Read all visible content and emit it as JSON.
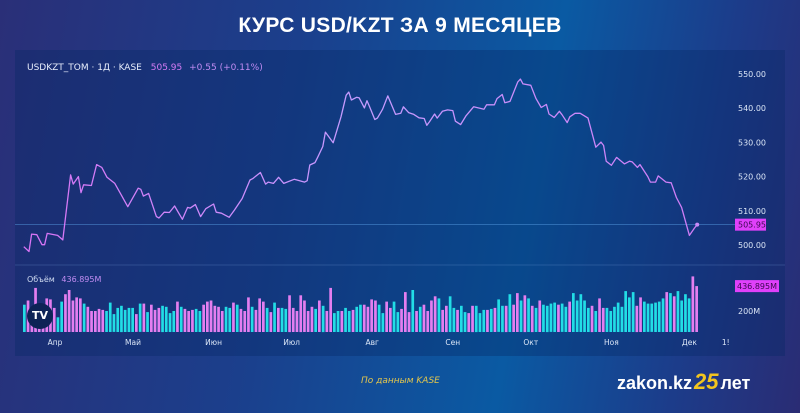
{
  "title": "КУРС USD/KZT ЗА 9 МЕСЯЦЕВ",
  "legend": {
    "symbol": "USDKZT_TOM · 1Д · KASE",
    "last": "505.95",
    "change": "+0.55 (+0.11%)"
  },
  "volume_legend": {
    "label": "Объём",
    "value": "436.895M"
  },
  "footer": {
    "source": "По данным KASE",
    "logo_text": "zakon.kz",
    "logo_number": "25",
    "logo_suffix": "лет"
  },
  "colors": {
    "line": "#c98af8",
    "volume_up": "#22dde6",
    "volume_down": "#e47ef0",
    "price_tag": "#e040fb"
  },
  "icons": {
    "tradingview_logo": "tradingview-logo-icon"
  },
  "chart_data": [
    {
      "type": "line",
      "ylim": [
        495,
        552
      ],
      "y_ticks": [
        "550.00",
        "540.00",
        "530.00",
        "520.00",
        "510.00",
        "500.00"
      ],
      "x_ticks": [
        "Апр",
        "Май",
        "Июн",
        "Июл",
        "Авг",
        "Сен",
        "Окт",
        "Ноя",
        "Дек",
        "1!"
      ],
      "last_price_label": "505.95",
      "grid": false,
      "points": [
        [
          "2025-03-20",
          499.5
        ],
        [
          "2025-03-22",
          498.1
        ],
        [
          "2025-03-23",
          503.2
        ],
        [
          "2025-03-25",
          503.0
        ],
        [
          "2025-03-27",
          500.1
        ],
        [
          "2025-03-28",
          500.1
        ],
        [
          "2025-03-29",
          503.4
        ],
        [
          "2025-04-02",
          502.8
        ],
        [
          "2025-04-04",
          501.5
        ],
        [
          "2025-04-07",
          520.5
        ],
        [
          "2025-04-08",
          517.8
        ],
        [
          "2025-04-10",
          520.0
        ],
        [
          "2025-04-11",
          515.3
        ],
        [
          "2025-04-12",
          517.6
        ],
        [
          "2025-04-15",
          517.4
        ],
        [
          "2025-04-17",
          523.5
        ],
        [
          "2025-04-19",
          522.7
        ],
        [
          "2025-04-21",
          519.8
        ],
        [
          "2025-04-24",
          518.0
        ],
        [
          "2025-04-26",
          515.3
        ],
        [
          "2025-04-29",
          511.2
        ],
        [
          "2025-05-03",
          516.6
        ],
        [
          "2025-05-04",
          516.3
        ],
        [
          "2025-05-05",
          514.3
        ],
        [
          "2025-05-07",
          515.1
        ],
        [
          "2025-05-10",
          508.3
        ],
        [
          "2025-05-11",
          507.9
        ],
        [
          "2025-05-13",
          509.6
        ],
        [
          "2025-05-15",
          509.5
        ],
        [
          "2025-05-17",
          511.4
        ],
        [
          "2025-05-19",
          508.8
        ],
        [
          "2025-05-20",
          507.5
        ],
        [
          "2025-05-22",
          511.0
        ],
        [
          "2025-05-23",
          510.8
        ],
        [
          "2025-05-25",
          511.8
        ],
        [
          "2025-05-27",
          508.3
        ],
        [
          "2025-05-29",
          510.6
        ],
        [
          "2025-06-01",
          512.0
        ],
        [
          "2025-06-02",
          509.6
        ],
        [
          "2025-06-04",
          509.3
        ],
        [
          "2025-06-07",
          508.1
        ],
        [
          "2025-06-09",
          510.2
        ],
        [
          "2025-06-12",
          513.6
        ],
        [
          "2025-06-15",
          519.0
        ],
        [
          "2025-06-16",
          519.4
        ],
        [
          "2025-06-19",
          521.2
        ],
        [
          "2025-06-21",
          517.8
        ],
        [
          "2025-06-22",
          518.4
        ],
        [
          "2025-06-24",
          518.0
        ],
        [
          "2025-06-26",
          519.8
        ],
        [
          "2025-06-28",
          518.0
        ],
        [
          "2025-07-02",
          519.2
        ],
        [
          "2025-07-06",
          518.4
        ],
        [
          "2025-07-07",
          518.8
        ],
        [
          "2025-07-08",
          523.4
        ],
        [
          "2025-07-10",
          524.1
        ],
        [
          "2025-07-11",
          525.6
        ],
        [
          "2025-07-13",
          528.8
        ],
        [
          "2025-07-14",
          533.0
        ],
        [
          "2025-07-17",
          529.9
        ],
        [
          "2025-07-20",
          537.5
        ],
        [
          "2025-07-22",
          543.8
        ],
        [
          "2025-07-23",
          544.7
        ],
        [
          "2025-07-24",
          542.4
        ],
        [
          "2025-07-26",
          543.2
        ],
        [
          "2025-07-27",
          543.0
        ],
        [
          "2025-07-29",
          540.1
        ],
        [
          "2025-07-30",
          542.2
        ],
        [
          "2025-07-31",
          540.4
        ],
        [
          "2025-08-02",
          536.7
        ],
        [
          "2025-08-03",
          537.1
        ],
        [
          "2025-08-05",
          539.7
        ],
        [
          "2025-08-07",
          543.6
        ],
        [
          "2025-08-10",
          538.2
        ],
        [
          "2025-08-12",
          538.5
        ],
        [
          "2025-08-13",
          540.4
        ],
        [
          "2025-08-15",
          538.7
        ],
        [
          "2025-08-17",
          538.2
        ],
        [
          "2025-08-19",
          537.2
        ],
        [
          "2025-08-21",
          537.0
        ],
        [
          "2025-08-22",
          535.0
        ],
        [
          "2025-08-23",
          536.0
        ],
        [
          "2025-08-25",
          538.3
        ],
        [
          "2025-08-26",
          537.1
        ],
        [
          "2025-08-28",
          539.1
        ],
        [
          "2025-08-30",
          539.5
        ],
        [
          "2025-09-01",
          539.3
        ],
        [
          "2025-09-02",
          536.2
        ],
        [
          "2025-09-04",
          535.2
        ],
        [
          "2025-09-06",
          537.7
        ],
        [
          "2025-09-09",
          540.4
        ],
        [
          "2025-09-13",
          539.7
        ],
        [
          "2025-09-14",
          541.0
        ],
        [
          "2025-09-17",
          541.0
        ],
        [
          "2025-09-18",
          542.8
        ],
        [
          "2025-09-20",
          544.0
        ],
        [
          "2025-09-21",
          541.6
        ],
        [
          "2025-09-23",
          542.0
        ],
        [
          "2025-09-26",
          547.7
        ],
        [
          "2025-09-27",
          548.5
        ],
        [
          "2025-09-28",
          547.1
        ],
        [
          "2025-10-01",
          546.7
        ],
        [
          "2025-10-03",
          542.8
        ],
        [
          "2025-10-05",
          540.2
        ],
        [
          "2025-10-07",
          541.1
        ],
        [
          "2025-10-08",
          538.3
        ],
        [
          "2025-10-10",
          537.3
        ],
        [
          "2025-10-12",
          539.1
        ],
        [
          "2025-10-13",
          538.1
        ],
        [
          "2025-10-15",
          535.8
        ],
        [
          "2025-10-16",
          537.5
        ],
        [
          "2025-10-18",
          538.5
        ],
        [
          "2025-10-20",
          538.5
        ],
        [
          "2025-10-23",
          537.1
        ],
        [
          "2025-10-26",
          528.6
        ],
        [
          "2025-10-28",
          530.1
        ],
        [
          "2025-10-29",
          529.1
        ],
        [
          "2025-10-30",
          524.5
        ],
        [
          "2025-11-01",
          523.3
        ],
        [
          "2025-11-03",
          525.6
        ],
        [
          "2025-11-06",
          523.7
        ],
        [
          "2025-11-08",
          524.5
        ],
        [
          "2025-11-09",
          524.3
        ],
        [
          "2025-11-11",
          522.7
        ],
        [
          "2025-11-12",
          523.5
        ],
        [
          "2025-11-15",
          520.0
        ],
        [
          "2025-11-16",
          518.4
        ],
        [
          "2025-11-18",
          518.4
        ],
        [
          "2025-11-19",
          520.2
        ],
        [
          "2025-11-22",
          518.4
        ],
        [
          "2025-11-24",
          518.2
        ],
        [
          "2025-11-26",
          513.9
        ],
        [
          "2025-11-28",
          511.0
        ],
        [
          "2025-12-01",
          502.8
        ],
        [
          "2025-12-03",
          505.0
        ],
        [
          "2025-12-04",
          505.95
        ]
      ]
    },
    {
      "type": "bar",
      "ylabel_ticks": [
        "200M"
      ],
      "last_volume_label": "436.895M",
      "values": [
        260,
        300,
        190,
        420,
        210,
        260,
        320,
        310,
        230,
        140,
        290,
        360,
        400,
        300,
        330,
        320,
        270,
        240,
        200,
        200,
        220,
        210,
        200,
        280,
        170,
        230,
        250,
        210,
        230,
        230,
        170,
        270,
        270,
        190,
        260,
        210,
        230,
        250,
        240,
        180,
        200,
        290,
        240,
        220,
        200,
        210,
        220,
        200,
        260,
        290,
        300,
        250,
        240,
        200,
        240,
        230,
        280,
        260,
        220,
        200,
        330,
        240,
        210,
        320,
        290,
        230,
        190,
        280,
        230,
        230,
        220,
        350,
        230,
        200,
        350,
        300,
        200,
        240,
        220,
        300,
        250,
        200,
        420,
        180,
        200,
        200,
        230,
        200,
        210,
        240,
        260,
        260,
        240,
        310,
        300,
        260,
        180,
        290,
        230,
        290,
        190,
        220,
        380,
        190,
        400,
        200,
        240,
        260,
        200,
        300,
        340,
        320,
        210,
        250,
        340,
        230,
        210,
        250,
        190,
        180,
        250,
        250,
        180,
        210,
        210,
        220,
        230,
        310,
        250,
        250,
        360,
        260,
        370,
        300,
        350,
        320,
        250,
        230,
        300,
        260,
        250,
        270,
        280,
        260,
        270,
        240,
        290,
        370,
        300,
        360,
        300,
        230,
        250,
        200,
        320,
        230,
        230,
        200,
        240,
        280,
        240,
        390,
        330,
        380,
        250,
        330,
        290,
        270,
        270,
        280,
        290,
        320,
        380,
        370,
        340,
        390,
        300,
        360,
        320,
        530,
        437
      ],
      "directions": [
        "up",
        "down",
        "down",
        "down",
        "down",
        "down",
        "down",
        "down",
        "down",
        "up",
        "up",
        "down",
        "down",
        "down",
        "down",
        "down",
        "up",
        "down",
        "down",
        "down",
        "down",
        "down",
        "up",
        "up",
        "up",
        "up",
        "up",
        "up",
        "up",
        "up",
        "down",
        "up",
        "down",
        "up",
        "down",
        "down",
        "down",
        "up",
        "up",
        "up",
        "up",
        "down",
        "up",
        "down",
        "down",
        "down",
        "up",
        "up",
        "down",
        "down",
        "down",
        "down",
        "down",
        "down",
        "up",
        "up",
        "down",
        "up",
        "down",
        "down",
        "down",
        "up",
        "down",
        "down",
        "down",
        "up",
        "down",
        "up",
        "down",
        "up",
        "up",
        "down",
        "down",
        "down",
        "down",
        "down",
        "down",
        "down",
        "up",
        "down",
        "up",
        "down",
        "down",
        "up",
        "up",
        "down",
        "up",
        "up",
        "down",
        "up",
        "up",
        "down",
        "down",
        "down",
        "down",
        "up",
        "up",
        "down",
        "down",
        "up",
        "up",
        "down",
        "down",
        "down",
        "up",
        "down",
        "up",
        "down",
        "down",
        "down",
        "down",
        "up",
        "down",
        "down",
        "up",
        "up",
        "down",
        "up",
        "up",
        "down",
        "down",
        "up",
        "up",
        "up",
        "down",
        "up",
        "down",
        "up",
        "up",
        "down",
        "up",
        "down",
        "down",
        "up",
        "down",
        "up",
        "down",
        "up",
        "down",
        "up",
        "up",
        "up",
        "up",
        "down",
        "up",
        "up",
        "down",
        "up",
        "up",
        "up",
        "up",
        "up",
        "down",
        "up",
        "down",
        "down",
        "up",
        "up",
        "up",
        "up",
        "up",
        "up",
        "up",
        "up",
        "down",
        "down",
        "up",
        "up",
        "up",
        "up",
        "up",
        "up",
        "down",
        "up",
        "down",
        "up",
        "up",
        "up",
        "up",
        "down",
        "down"
      ]
    }
  ]
}
